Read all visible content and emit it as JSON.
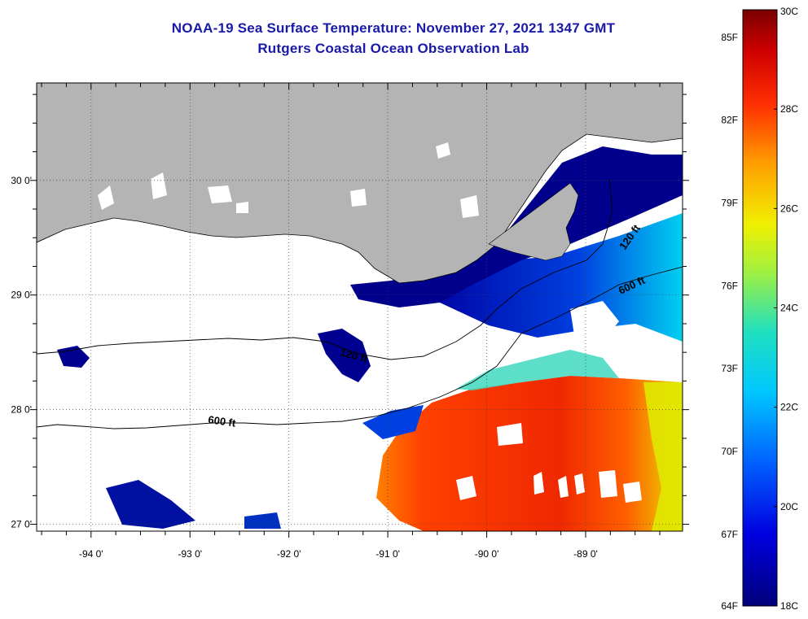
{
  "header": {
    "title": "NOAA-19 Sea Surface Temperature:  November 27, 2021 1347 GMT",
    "subtitle": "Rutgers Coastal Ocean Observation Lab"
  },
  "axes": {
    "lon_ticks": [
      {
        "lon": -94,
        "label": "-94 0'"
      },
      {
        "lon": -93,
        "label": "-93 0'"
      },
      {
        "lon": -92,
        "label": "-92 0'"
      },
      {
        "lon": -91,
        "label": "-91 0'"
      },
      {
        "lon": -90,
        "label": "-90 0'"
      },
      {
        "lon": -89,
        "label": "-89 0'"
      }
    ],
    "lat_ticks": [
      {
        "lat": 30,
        "label": "30 0'"
      },
      {
        "lat": 29,
        "label": "29 0'"
      },
      {
        "lat": 28,
        "label": "28 0'"
      },
      {
        "lat": 27,
        "label": "27 0'"
      }
    ],
    "lon_range": [
      -94.55,
      -88.02
    ],
    "lat_range": [
      26.94,
      30.85
    ]
  },
  "contours": {
    "label_120": "120 ft",
    "label_600": "600 ft"
  },
  "colorbar": {
    "min_c": 18,
    "max_c": 30,
    "celsius_labels": [
      {
        "value": 30,
        "label": "30C"
      },
      {
        "value": 28,
        "label": "28C"
      },
      {
        "value": 26,
        "label": "26C"
      },
      {
        "value": 24,
        "label": "24C"
      },
      {
        "value": 22,
        "label": "22C"
      },
      {
        "value": 20,
        "label": "20C"
      },
      {
        "value": 18,
        "label": "18C"
      }
    ],
    "fahrenheit_labels": [
      {
        "value": 85,
        "label": "85F"
      },
      {
        "value": 82,
        "label": "82F"
      },
      {
        "value": 79,
        "label": "79F"
      },
      {
        "value": 76,
        "label": "76F"
      },
      {
        "value": 73,
        "label": "73F"
      },
      {
        "value": 70,
        "label": "70F"
      },
      {
        "value": 67,
        "label": "67F"
      },
      {
        "value": 64,
        "label": "64F"
      }
    ]
  },
  "colors": {
    "land": "#b4b4b4",
    "cloud": "#ffffff",
    "title": "#1a1aa8",
    "cold": "#000080",
    "warm": "#e82000"
  }
}
